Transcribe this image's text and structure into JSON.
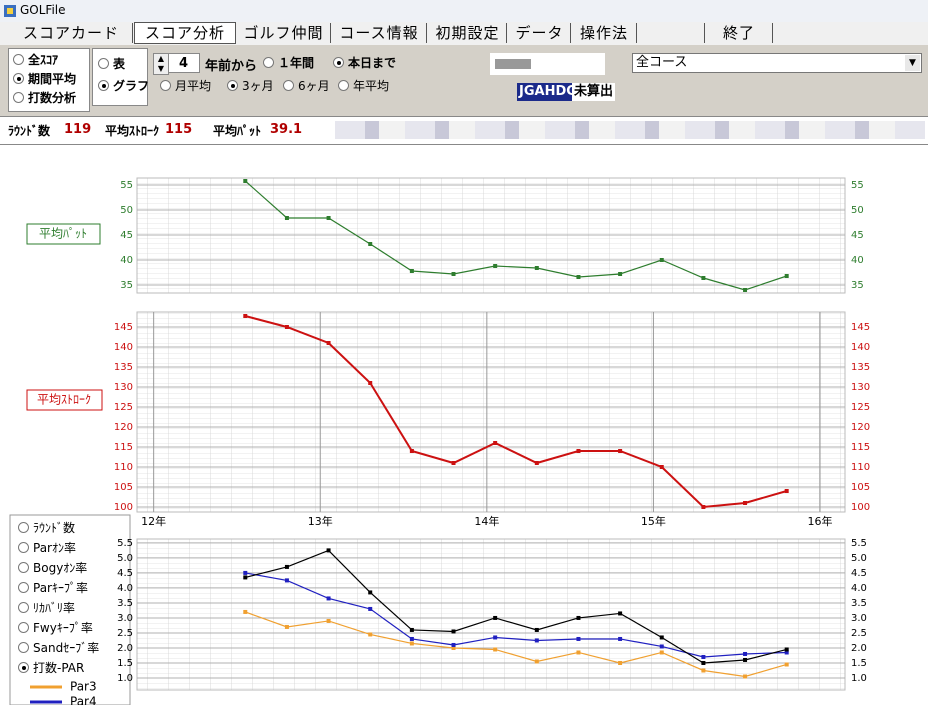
{
  "window": {
    "title": "GOLFile"
  },
  "tabs": [
    "スコアカード",
    "スコア分析",
    "ゴルフ仲間",
    "コース情報",
    "初期設定",
    "データ",
    "操作法",
    "終了"
  ],
  "mode_options": [
    "全ｽｺｱ",
    "期間平均",
    "打数分析"
  ],
  "mode_selected": 1,
  "view_options": [
    "表",
    "グラフ"
  ],
  "view_selected": 1,
  "years_back": 4,
  "from_label": "年前から",
  "range_options": [
    "１年間",
    "本日まで"
  ],
  "range_selected": 1,
  "period_options": [
    "月平均",
    "3ヶ月",
    "6ヶ月",
    "年平均"
  ],
  "period_selected": 1,
  "hdcp_label": "JGAHDCP",
  "hdcp_value": "未算出",
  "course": "全コース",
  "stats": [
    {
      "label": "ﾗｳﾝﾄﾞ数",
      "value": 119
    },
    {
      "label": "平均ｽﾄﾛｰｸ",
      "value": 115
    },
    {
      "label": "平均ﾊﾟｯﾄ",
      "value": 39.1
    }
  ],
  "stat_options": [
    "ﾗｳﾝﾄﾞ数",
    "Parｵﾝ率",
    "Bogyｵﾝ率",
    "Parｷｰﾌﾟ率",
    "ﾘｶﾊﾞﾘ率",
    "Fwyｷｰﾌﾟ率",
    "Sandｾｰﾌﾞ率",
    "打数-PAR"
  ],
  "stat_selected": 7,
  "chart_data": [
    {
      "type": "line",
      "label": "平均ﾊﾟｯﾄ",
      "color": "#2e7d2e",
      "x": [
        12.55,
        12.8,
        13.05,
        13.3,
        13.55,
        13.8,
        14.05,
        14.3,
        14.55,
        14.8,
        15.05,
        15.3,
        15.55,
        15.8
      ],
      "values": [
        55.8,
        48.4,
        48.4,
        43.2,
        37.8,
        37.2,
        38.8,
        38.4,
        36.6,
        37.2,
        40,
        36.4,
        34,
        36.8
      ],
      "xlim": [
        11.9,
        16.15
      ],
      "ylim": [
        33.4,
        56.4
      ],
      "yticks": [
        35,
        40,
        45,
        50,
        55
      ],
      "grid": true
    },
    {
      "type": "line",
      "label": "平均ｽﾄﾛｰｸ",
      "color": "#cc1111",
      "x": [
        12.55,
        12.8,
        13.05,
        13.3,
        13.55,
        13.8,
        14.05,
        14.3,
        14.55,
        14.8,
        15.05,
        15.3,
        15.55,
        15.8
      ],
      "values": [
        147.75,
        145,
        141,
        131,
        114,
        111,
        116,
        111,
        114,
        114,
        110,
        100,
        101,
        104
      ],
      "xlim": [
        11.9,
        16.15
      ],
      "xticks": [
        {
          "value": 12,
          "label": "12年"
        },
        {
          "value": 13,
          "label": "13年"
        },
        {
          "value": 14,
          "label": "14年"
        },
        {
          "value": 15,
          "label": "15年"
        },
        {
          "value": 16,
          "label": "16年"
        }
      ],
      "ylim": [
        98.75,
        148.75
      ],
      "yticks": [
        100,
        105,
        110,
        115,
        120,
        125,
        130,
        135,
        140,
        145
      ],
      "grid": true
    },
    {
      "type": "line",
      "x": [
        12.55,
        12.8,
        13.05,
        13.3,
        13.55,
        13.8,
        14.05,
        14.3,
        14.55,
        14.8,
        15.05,
        15.3,
        15.55,
        15.8
      ],
      "series": [
        {
          "name": "Par3",
          "color": "#f0a030",
          "values": [
            3.2,
            2.7,
            2.9,
            2.45,
            2.15,
            2.0,
            1.95,
            1.55,
            1.85,
            1.5,
            1.85,
            1.25,
            1.05,
            1.45
          ]
        },
        {
          "name": "Par4",
          "color": "#2020c0",
          "values": [
            4.5,
            4.25,
            3.65,
            3.3,
            2.3,
            2.1,
            2.35,
            2.25,
            2.3,
            2.3,
            2.05,
            1.7,
            1.8,
            1.85
          ]
        },
        {
          "color": "#000000",
          "values": [
            4.35,
            4.7,
            5.25,
            3.85,
            2.6,
            2.55,
            3.0,
            2.6,
            3.0,
            3.15,
            2.35,
            1.5,
            1.6,
            1.95
          ]
        }
      ],
      "xlim": [
        11.9,
        16.15
      ],
      "ylim": [
        0.6,
        5.63
      ],
      "yticks": [
        {
          "value": 1,
          "label": "1.0"
        },
        1.5,
        {
          "value": 2,
          "label": "2.0"
        },
        2.5,
        {
          "value": 3,
          "label": "3.0"
        },
        3.5,
        {
          "value": 4,
          "label": "4.0"
        },
        4.5,
        {
          "value": 5,
          "label": "5.0"
        },
        5.5
      ],
      "grid": true
    }
  ]
}
